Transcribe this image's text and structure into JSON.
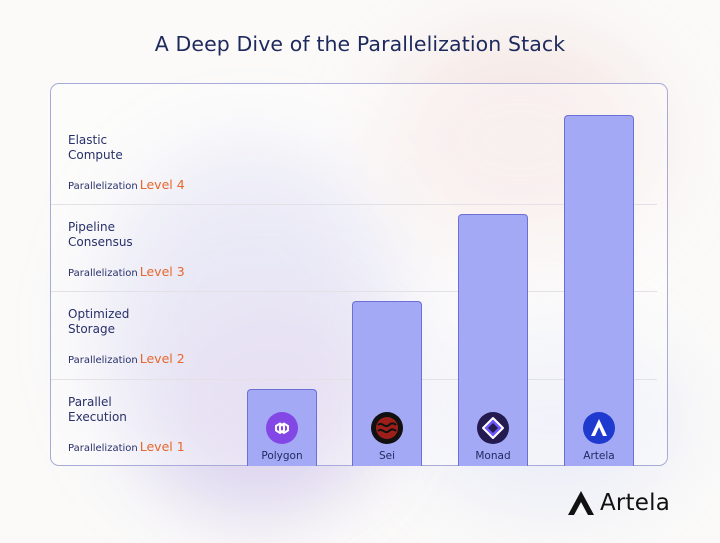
{
  "title": "A Deep Dive of the Parallelization Stack",
  "brand": {
    "name": "Artela",
    "logo_icon": "artela-logo-icon"
  },
  "levels": [
    {
      "name": "Parallel\nExecution",
      "prefix": "Parallelization",
      "level": "Level 1"
    },
    {
      "name": "Optimized\nStorage",
      "prefix": "Parallelization",
      "level": "Level 2"
    },
    {
      "name": "Pipeline\nConsensus",
      "prefix": "Parallelization",
      "level": "Level 3"
    },
    {
      "name": "Elastic\nCompute",
      "prefix": "Parallelization",
      "level": "Level 4"
    }
  ],
  "colors": {
    "bar_fill": "#a4a9f6",
    "bar_border": "#6c70d6",
    "level_accent": "#e8672c",
    "title": "#1e2a5e",
    "polygon": "#8247e5",
    "sei": "#9e1f19",
    "monad": "#6e54ff",
    "artela": "#1f3acf"
  },
  "chart_data": {
    "type": "bar",
    "title": "A Deep Dive of the Parallelization Stack",
    "categories": [
      "Polygon",
      "Sei",
      "Monad",
      "Artela"
    ],
    "values": [
      1,
      2,
      3,
      4
    ],
    "value_labels": [
      "Level 1",
      "Level 2",
      "Level 3",
      "Level 4"
    ],
    "ylim": [
      0,
      4.35
    ],
    "icons": [
      "polygon-icon",
      "sei-icon",
      "monad-icon",
      "artela-icon"
    ],
    "grid": true,
    "legend": "none"
  }
}
